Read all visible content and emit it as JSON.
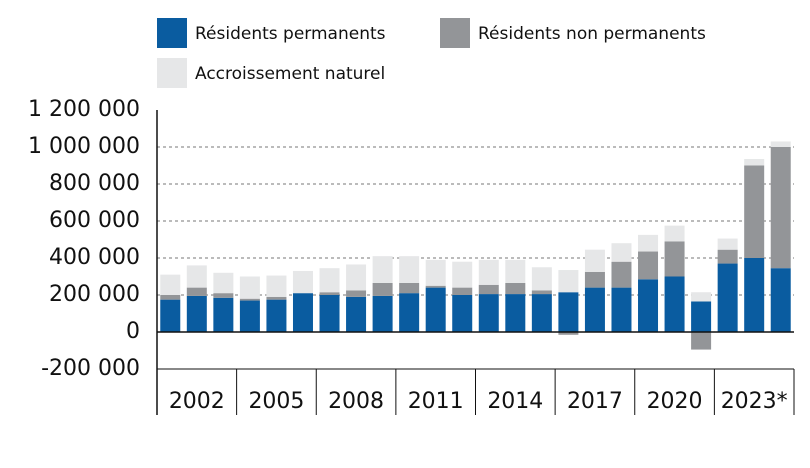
{
  "chart_data": {
    "type": "stacked-bar",
    "categories": [
      null,
      "2002",
      null,
      null,
      "2005",
      null,
      null,
      "2008",
      null,
      null,
      "2011",
      null,
      null,
      "2014",
      null,
      null,
      "2017",
      null,
      null,
      "2020",
      null,
      null,
      "2023*",
      null
    ],
    "series": [
      {
        "name": "Résidents permanents",
        "color": "#0a5ca0",
        "values": [
          175,
          195,
          185,
          170,
          175,
          210,
          200,
          190,
          195,
          210,
          240,
          200,
          205,
          205,
          205,
          215,
          240,
          240,
          285,
          300,
          165,
          370,
          400,
          345
        ]
      },
      {
        "name": "Résidents non permanents",
        "color": "#939598",
        "values": [
          25,
          45,
          25,
          10,
          15,
          0,
          15,
          35,
          70,
          55,
          10,
          40,
          50,
          60,
          20,
          -15,
          85,
          140,
          150,
          190,
          -95,
          75,
          500,
          655
        ]
      },
      {
        "name": "Accroissement naturel",
        "color": "#e6e7e8",
        "values": [
          110,
          120,
          110,
          120,
          115,
          120,
          130,
          140,
          145,
          145,
          140,
          140,
          135,
          125,
          125,
          120,
          120,
          100,
          90,
          85,
          50,
          60,
          35,
          30
        ]
      }
    ],
    "value_scale": 1000,
    "ylim": [
      -200000,
      1200000
    ],
    "yticks": [
      {
        "value": -200000,
        "label": "-200 000"
      },
      0,
      {
        "value": 200000,
        "label": "200 000"
      },
      {
        "value": 400000,
        "label": "400 000"
      },
      {
        "value": 600000,
        "label": "600 000"
      },
      {
        "value": 800000,
        "label": "800 000"
      },
      {
        "value": 1000000,
        "label": "1 000 000"
      },
      {
        "value": 1200000,
        "label": "1 200 000"
      }
    ],
    "grid": true
  }
}
